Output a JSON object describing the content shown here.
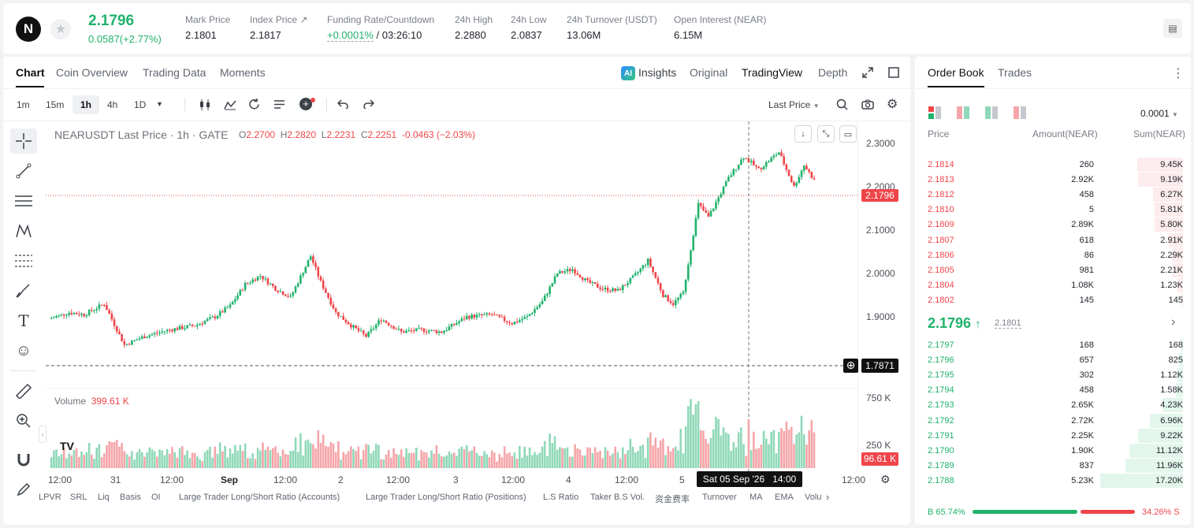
{
  "header": {
    "logo_glyph": "N",
    "favorite_icon": "star-icon",
    "last_price": "2.1796",
    "change": "0.0587(+2.77%)",
    "stats": [
      {
        "label": "Mark Price",
        "value": "2.1801"
      },
      {
        "label": "Index Price ↗",
        "value": "2.1817"
      },
      {
        "label": "Funding Rate/Countdown",
        "value": "+0.0001%",
        "value2": "/ 03:26:10"
      },
      {
        "label": "24h High",
        "value": "2.2880"
      },
      {
        "label": "24h Low",
        "value": "2.0837"
      },
      {
        "label": "24h Turnover (USDT)",
        "value": "13.06M"
      },
      {
        "label": "Open Interest (NEAR)",
        "value": "6.15M"
      }
    ]
  },
  "chart_tabs": [
    "Chart",
    "Coin Overview",
    "Trading Data",
    "Moments"
  ],
  "view_tabs": {
    "insights": "Insights",
    "original": "Original",
    "tradingview": "TradingView",
    "depth": "Depth"
  },
  "toolbar": {
    "timeframes": [
      "1m",
      "15m",
      "1h",
      "4h",
      "1D"
    ],
    "selected_timeframe": "1h",
    "price_type": "Last Price"
  },
  "legend": {
    "symbol": "NEARUSDT Last Price · 1h · GATE",
    "o_label": "O",
    "o": "2.2700",
    "h_label": "H",
    "h": "2.2820",
    "l_label": "L",
    "l": "2.2231",
    "c_label": "C",
    "c": "2.2251",
    "chg": "-0.0463 (−2.03%)"
  },
  "price_axis": [
    "2.3000",
    "2.2000",
    "2.1000",
    "2.0000",
    "1.9000",
    "1.7871"
  ],
  "current_price_tag": "2.1796",
  "crosshair_price_tag": "1.7871",
  "volume": {
    "label": "Volume",
    "value": "399.61 K",
    "axis": [
      "750 K",
      "250 K"
    ],
    "tag": "96.61 K"
  },
  "time_axis": [
    "12:00",
    "31",
    "12:00",
    "Sep",
    "12:00",
    "2",
    "12:00",
    "3",
    "12:00",
    "4",
    "12:00",
    "5",
    "12:00"
  ],
  "crosshair_time": "Sat 05 Sep '26   14:00",
  "indicators": [
    "LPVR",
    "SRL",
    "Liq",
    "Basis",
    "OI",
    "Large Trader Long/Short Ratio (Accounts)",
    "Large Trader Long/Short Ratio (Positions)",
    "L.S Ratio",
    "Taker B.S Vol.",
    "资金费率",
    "Turnover",
    "MA",
    "EMA",
    "Volu"
  ],
  "orderbook": {
    "tabs": [
      "Order Book",
      "Trades"
    ],
    "precision": "0.0001",
    "headers": {
      "price": "Price",
      "amount": "Amount(NEAR)",
      "sum": "Sum(NEAR)"
    },
    "asks": [
      {
        "price": "2.1814",
        "amount": "260",
        "sum": "9.45K",
        "depth": 0.55
      },
      {
        "price": "2.1813",
        "amount": "2.92K",
        "sum": "9.19K",
        "depth": 0.54
      },
      {
        "price": "2.1812",
        "amount": "458",
        "sum": "6.27K",
        "depth": 0.36
      },
      {
        "price": "2.1810",
        "amount": "5",
        "sum": "5.81K",
        "depth": 0.34
      },
      {
        "price": "2.1809",
        "amount": "2.89K",
        "sum": "5.80K",
        "depth": 0.34
      },
      {
        "price": "2.1807",
        "amount": "618",
        "sum": "2.91K",
        "depth": 0.17
      },
      {
        "price": "2.1806",
        "amount": "86",
        "sum": "2.29K",
        "depth": 0.13
      },
      {
        "price": "2.1805",
        "amount": "981",
        "sum": "2.21K",
        "depth": 0.13
      },
      {
        "price": "2.1804",
        "amount": "1.08K",
        "sum": "1.23K",
        "depth": 0.07
      },
      {
        "price": "2.1802",
        "amount": "145",
        "sum": "145",
        "depth": 0.01
      }
    ],
    "mid_price": "2.1796",
    "mid_arrow": "↑",
    "mid_mark": "2.1801",
    "bids": [
      {
        "price": "2.1797",
        "amount": "168",
        "sum": "168",
        "depth": 0.01
      },
      {
        "price": "2.1796",
        "amount": "657",
        "sum": "825",
        "depth": 0.05
      },
      {
        "price": "2.1795",
        "amount": "302",
        "sum": "1.12K",
        "depth": 0.07
      },
      {
        "price": "2.1794",
        "amount": "458",
        "sum": "1.58K",
        "depth": 0.09
      },
      {
        "price": "2.1793",
        "amount": "2.65K",
        "sum": "4.23K",
        "depth": 0.25
      },
      {
        "price": "2.1792",
        "amount": "2.72K",
        "sum": "6.96K",
        "depth": 0.4
      },
      {
        "price": "2.1791",
        "amount": "2.25K",
        "sum": "9.22K",
        "depth": 0.54
      },
      {
        "price": "2.1790",
        "amount": "1.90K",
        "sum": "11.12K",
        "depth": 0.65
      },
      {
        "price": "2.1789",
        "amount": "837",
        "sum": "11.96K",
        "depth": 0.7
      },
      {
        "price": "2.1788",
        "amount": "5.23K",
        "sum": "17.20K",
        "depth": 1.0
      }
    ],
    "buy_ratio": "B 65.74%",
    "sell_ratio": "34.26% S",
    "buy_fraction": 0.6574
  },
  "colors": {
    "up": "#20b26c",
    "down": "#ef454a",
    "up_bar": "#8fd8b8",
    "down_bar": "#f5a5a9"
  }
}
